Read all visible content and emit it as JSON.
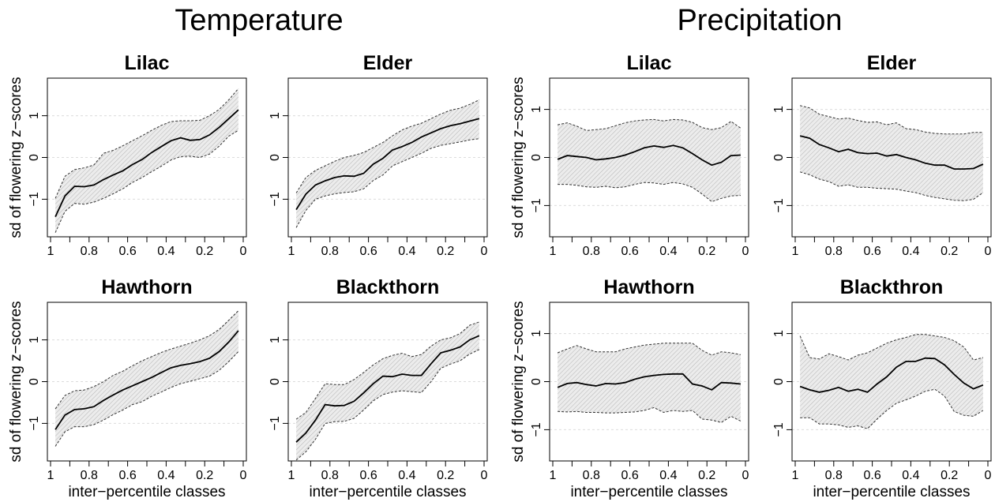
{
  "sections": [
    {
      "title": "Temperature"
    },
    {
      "title": "Precipitation"
    }
  ],
  "chart_data": [
    {
      "type": "area",
      "section": "Temperature",
      "title": "Lilac",
      "xlabel": "",
      "ylabel": "sd of flowering z−scores",
      "xlim": [
        1,
        0
      ],
      "ylim": [
        -1.9,
        1.9
      ],
      "xticks": [
        "1",
        "0.8",
        "0.6",
        "0.4",
        "0.2",
        "0"
      ],
      "yticks": [
        "−1",
        "0",
        "1"
      ],
      "grid": "horizontal dashed",
      "x": [
        0.975,
        0.925,
        0.875,
        0.825,
        0.775,
        0.725,
        0.675,
        0.625,
        0.575,
        0.525,
        0.475,
        0.425,
        0.375,
        0.325,
        0.275,
        0.225,
        0.175,
        0.125,
        0.075,
        0.025
      ],
      "series": [
        {
          "values": [
            -1.42,
            -0.92,
            -0.69,
            -0.7,
            -0.66,
            -0.53,
            -0.42,
            -0.32,
            -0.17,
            -0.05,
            0.12,
            0.26,
            0.4,
            0.47,
            0.41,
            0.43,
            0.54,
            0.72,
            0.93,
            1.14
          ],
          "role": "mean"
        },
        {
          "values": [
            -0.98,
            -0.45,
            -0.29,
            -0.25,
            -0.18,
            0.1,
            0.17,
            0.28,
            0.4,
            0.52,
            0.65,
            0.77,
            0.86,
            0.88,
            0.88,
            0.89,
            1.0,
            1.15,
            1.38,
            1.65
          ],
          "role": "upper"
        },
        {
          "values": [
            -1.8,
            -1.29,
            -1.1,
            -1.12,
            -1.07,
            -0.98,
            -0.87,
            -0.75,
            -0.6,
            -0.48,
            -0.34,
            -0.21,
            -0.06,
            0.02,
            0.03,
            0.0,
            0.08,
            0.27,
            0.51,
            0.65
          ],
          "role": "lower"
        }
      ]
    },
    {
      "type": "area",
      "section": "Temperature",
      "title": "Elder",
      "xlabel": "",
      "ylabel": "",
      "xlim": [
        1,
        0
      ],
      "ylim": [
        -1.9,
        1.9
      ],
      "xticks": [
        "1",
        "0.8",
        "0.6",
        "0.4",
        "0.2",
        "0"
      ],
      "yticks": [
        "−1",
        "0",
        "1"
      ],
      "grid": "horizontal dashed",
      "x": [
        0.975,
        0.925,
        0.875,
        0.825,
        0.775,
        0.725,
        0.675,
        0.625,
        0.575,
        0.525,
        0.475,
        0.425,
        0.375,
        0.325,
        0.275,
        0.225,
        0.175,
        0.125,
        0.075,
        0.025
      ],
      "series": [
        {
          "values": [
            -1.25,
            -0.88,
            -0.66,
            -0.56,
            -0.48,
            -0.44,
            -0.45,
            -0.38,
            -0.16,
            -0.02,
            0.18,
            0.26,
            0.36,
            0.49,
            0.59,
            0.69,
            0.76,
            0.81,
            0.87,
            0.93
          ],
          "role": "mean"
        },
        {
          "values": [
            -0.85,
            -0.48,
            -0.31,
            -0.2,
            -0.09,
            0.0,
            0.05,
            0.12,
            0.24,
            0.36,
            0.52,
            0.66,
            0.75,
            0.82,
            0.93,
            1.04,
            1.13,
            1.18,
            1.27,
            1.38
          ],
          "role": "upper"
        },
        {
          "values": [
            -1.68,
            -1.27,
            -1.0,
            -0.92,
            -0.87,
            -0.84,
            -0.82,
            -0.75,
            -0.55,
            -0.42,
            -0.2,
            -0.1,
            0.0,
            0.1,
            0.22,
            0.29,
            0.33,
            0.37,
            0.42,
            0.45
          ],
          "role": "lower"
        }
      ]
    },
    {
      "type": "area",
      "section": "Precipitation",
      "title": "Lilac",
      "xlabel": "",
      "ylabel": "sd of flowering z−scores",
      "xlim": [
        1,
        0
      ],
      "ylim": [
        -1.65,
        1.65
      ],
      "xticks": [
        "1",
        "0.8",
        "0.6",
        "0.4",
        "0.2",
        "0"
      ],
      "yticks": [
        "−1",
        "0",
        "1"
      ],
      "grid": "horizontal dashed",
      "x": [
        0.975,
        0.925,
        0.875,
        0.825,
        0.775,
        0.725,
        0.675,
        0.625,
        0.575,
        0.525,
        0.475,
        0.425,
        0.375,
        0.325,
        0.275,
        0.225,
        0.175,
        0.125,
        0.075,
        0.025
      ],
      "series": [
        {
          "values": [
            -0.04,
            0.04,
            0.02,
            0.0,
            -0.05,
            -0.03,
            0.0,
            0.05,
            0.12,
            0.2,
            0.24,
            0.21,
            0.25,
            0.2,
            0.08,
            -0.05,
            -0.16,
            -0.1,
            0.04,
            0.05
          ],
          "role": "mean"
        },
        {
          "values": [
            0.68,
            0.72,
            0.65,
            0.56,
            0.58,
            0.6,
            0.66,
            0.72,
            0.76,
            0.78,
            0.79,
            0.76,
            0.79,
            0.78,
            0.73,
            0.62,
            0.58,
            0.62,
            0.75,
            0.61
          ],
          "role": "upper"
        },
        {
          "values": [
            -0.56,
            -0.56,
            -0.58,
            -0.61,
            -0.62,
            -0.6,
            -0.63,
            -0.61,
            -0.56,
            -0.52,
            -0.53,
            -0.56,
            -0.52,
            -0.55,
            -0.62,
            -0.76,
            -0.92,
            -0.85,
            -0.8,
            -0.79
          ],
          "role": "lower"
        }
      ]
    },
    {
      "type": "area",
      "section": "Precipitation",
      "title": "Elder",
      "xlabel": "",
      "ylabel": "",
      "xlim": [
        1,
        0
      ],
      "ylim": [
        -1.65,
        1.65
      ],
      "xticks": [
        "1",
        "0.8",
        "0.6",
        "0.4",
        "0.2",
        "0"
      ],
      "yticks": [
        "−1",
        "0",
        "1"
      ],
      "grid": "horizontal dashed",
      "x": [
        0.975,
        0.925,
        0.875,
        0.825,
        0.775,
        0.725,
        0.675,
        0.625,
        0.575,
        0.525,
        0.475,
        0.425,
        0.375,
        0.325,
        0.275,
        0.225,
        0.175,
        0.125,
        0.075,
        0.025
      ],
      "series": [
        {
          "values": [
            0.45,
            0.4,
            0.27,
            0.2,
            0.12,
            0.17,
            0.1,
            0.08,
            0.09,
            0.03,
            0.06,
            0.0,
            -0.05,
            -0.12,
            -0.16,
            -0.16,
            -0.24,
            -0.24,
            -0.23,
            -0.14
          ],
          "role": "mean"
        },
        {
          "values": [
            1.08,
            1.03,
            0.9,
            0.85,
            0.8,
            0.82,
            0.77,
            0.73,
            0.74,
            0.68,
            0.72,
            0.6,
            0.58,
            0.53,
            0.5,
            0.49,
            0.49,
            0.49,
            0.52,
            0.52
          ],
          "role": "upper"
        },
        {
          "values": [
            -0.3,
            -0.36,
            -0.45,
            -0.5,
            -0.6,
            -0.57,
            -0.62,
            -0.62,
            -0.64,
            -0.65,
            -0.66,
            -0.7,
            -0.73,
            -0.79,
            -0.83,
            -0.86,
            -0.89,
            -0.9,
            -0.87,
            -0.73
          ],
          "role": "lower"
        }
      ]
    },
    {
      "type": "area",
      "section": "Temperature",
      "title": "Hawthorn",
      "xlabel": "inter−percentile classes",
      "ylabel": "sd of flowering z−scores",
      "xlim": [
        1,
        0
      ],
      "ylim": [
        -1.9,
        1.9
      ],
      "xticks": [
        "1",
        "0.8",
        "0.6",
        "0.4",
        "0.2",
        "0"
      ],
      "yticks": [
        "−1",
        "0",
        "1"
      ],
      "grid": "horizontal dashed",
      "x": [
        0.975,
        0.925,
        0.875,
        0.825,
        0.775,
        0.725,
        0.675,
        0.625,
        0.575,
        0.525,
        0.475,
        0.425,
        0.375,
        0.325,
        0.275,
        0.225,
        0.175,
        0.125,
        0.075,
        0.025
      ],
      "series": [
        {
          "values": [
            -1.15,
            -0.8,
            -0.67,
            -0.65,
            -0.6,
            -0.45,
            -0.32,
            -0.2,
            -0.1,
            0.0,
            0.1,
            0.22,
            0.33,
            0.39,
            0.43,
            0.48,
            0.56,
            0.72,
            0.95,
            1.22
          ],
          "role": "mean"
        },
        {
          "values": [
            -0.65,
            -0.33,
            -0.22,
            -0.2,
            -0.12,
            0.0,
            0.15,
            0.25,
            0.38,
            0.5,
            0.6,
            0.7,
            0.78,
            0.85,
            0.92,
            1.0,
            1.1,
            1.25,
            1.47,
            1.7
          ],
          "role": "upper"
        },
        {
          "values": [
            -1.55,
            -1.2,
            -1.08,
            -1.08,
            -1.03,
            -0.92,
            -0.79,
            -0.68,
            -0.55,
            -0.48,
            -0.35,
            -0.25,
            -0.14,
            -0.05,
            0.01,
            0.07,
            0.13,
            0.27,
            0.48,
            0.72
          ],
          "role": "lower"
        }
      ]
    },
    {
      "type": "area",
      "section": "Temperature",
      "title": "Blackthorn",
      "xlabel": "inter−percentile classes",
      "ylabel": "",
      "xlim": [
        1,
        0
      ],
      "ylim": [
        -1.9,
        1.9
      ],
      "xticks": [
        "1",
        "0.8",
        "0.6",
        "0.4",
        "0.2",
        "0"
      ],
      "yticks": [
        "−1",
        "0",
        "1"
      ],
      "grid": "horizontal dashed",
      "x": [
        0.975,
        0.925,
        0.875,
        0.825,
        0.775,
        0.725,
        0.675,
        0.625,
        0.575,
        0.525,
        0.475,
        0.425,
        0.375,
        0.325,
        0.275,
        0.225,
        0.175,
        0.125,
        0.075,
        0.025
      ],
      "series": [
        {
          "values": [
            -1.45,
            -1.23,
            -0.92,
            -0.55,
            -0.58,
            -0.57,
            -0.47,
            -0.27,
            -0.05,
            0.13,
            0.12,
            0.18,
            0.15,
            0.15,
            0.43,
            0.69,
            0.75,
            0.83,
            1.0,
            1.1
          ],
          "role": "mean"
        },
        {
          "values": [
            -0.9,
            -0.74,
            -0.4,
            -0.05,
            -0.07,
            -0.07,
            0.05,
            0.22,
            0.4,
            0.55,
            0.63,
            0.68,
            0.6,
            0.65,
            0.85,
            1.0,
            1.05,
            1.15,
            1.35,
            1.43
          ],
          "role": "upper"
        },
        {
          "values": [
            -1.88,
            -1.68,
            -1.38,
            -1.0,
            -0.96,
            -0.95,
            -0.88,
            -0.68,
            -0.46,
            -0.31,
            -0.25,
            -0.22,
            -0.24,
            -0.26,
            0.0,
            0.32,
            0.42,
            0.5,
            0.66,
            0.77
          ],
          "role": "lower"
        }
      ]
    },
    {
      "type": "area",
      "section": "Precipitation",
      "title": "Hawthorn",
      "xlabel": "inter−percentile classes",
      "ylabel": "sd of flowering z−scores",
      "xlim": [
        1,
        0
      ],
      "ylim": [
        -1.65,
        1.65
      ],
      "xticks": [
        "1",
        "0.8",
        "0.6",
        "0.4",
        "0.2",
        "0"
      ],
      "yticks": [
        "−1",
        "0",
        "1"
      ],
      "grid": "horizontal dashed",
      "x": [
        0.975,
        0.925,
        0.875,
        0.825,
        0.775,
        0.725,
        0.675,
        0.625,
        0.575,
        0.525,
        0.475,
        0.425,
        0.375,
        0.325,
        0.275,
        0.225,
        0.175,
        0.125,
        0.075,
        0.025
      ],
      "series": [
        {
          "values": [
            -0.12,
            -0.04,
            -0.02,
            -0.06,
            -0.09,
            -0.04,
            -0.05,
            -0.02,
            0.05,
            0.1,
            0.13,
            0.15,
            0.16,
            0.16,
            -0.05,
            -0.09,
            -0.17,
            -0.02,
            -0.03,
            -0.05
          ],
          "role": "mean"
        },
        {
          "values": [
            0.6,
            0.68,
            0.75,
            0.68,
            0.62,
            0.62,
            0.62,
            0.68,
            0.72,
            0.76,
            0.78,
            0.8,
            0.8,
            0.8,
            0.8,
            0.65,
            0.55,
            0.62,
            0.6,
            0.56
          ],
          "role": "upper"
        },
        {
          "values": [
            -0.62,
            -0.63,
            -0.62,
            -0.64,
            -0.64,
            -0.65,
            -0.65,
            -0.64,
            -0.63,
            -0.6,
            -0.54,
            -0.64,
            -0.6,
            -0.62,
            -0.6,
            -0.78,
            -0.8,
            -0.85,
            -0.72,
            -0.82
          ],
          "role": "lower"
        }
      ]
    },
    {
      "type": "area",
      "section": "Precipitation",
      "title": "Blackthron",
      "xlabel": "inter−percentile classes",
      "ylabel": "",
      "xlim": [
        1,
        0
      ],
      "ylim": [
        -1.65,
        1.65
      ],
      "xticks": [
        "1",
        "0.8",
        "0.6",
        "0.4",
        "0.2",
        "0"
      ],
      "yticks": [
        "−1",
        "0",
        "1"
      ],
      "grid": "horizontal dashed",
      "x": [
        0.975,
        0.925,
        0.875,
        0.825,
        0.775,
        0.725,
        0.675,
        0.625,
        0.575,
        0.525,
        0.475,
        0.425,
        0.375,
        0.325,
        0.275,
        0.225,
        0.175,
        0.125,
        0.075,
        0.025
      ],
      "series": [
        {
          "values": [
            -0.1,
            -0.17,
            -0.22,
            -0.18,
            -0.12,
            -0.2,
            -0.16,
            -0.22,
            -0.05,
            0.1,
            0.3,
            0.42,
            0.42,
            0.49,
            0.48,
            0.35,
            0.15,
            -0.03,
            -0.15,
            -0.07
          ],
          "role": "mean"
        },
        {
          "values": [
            0.95,
            0.5,
            0.47,
            0.58,
            0.52,
            0.45,
            0.55,
            0.6,
            0.7,
            0.8,
            0.87,
            0.92,
            0.98,
            0.98,
            0.95,
            0.92,
            0.85,
            0.72,
            0.45,
            0.5
          ],
          "role": "upper"
        },
        {
          "values": [
            -0.75,
            -0.75,
            -0.88,
            -0.88,
            -0.9,
            -0.95,
            -0.92,
            -0.98,
            -0.78,
            -0.6,
            -0.45,
            -0.38,
            -0.3,
            -0.2,
            -0.16,
            -0.3,
            -0.62,
            -0.7,
            -0.72,
            -0.6
          ],
          "role": "lower"
        }
      ]
    }
  ]
}
